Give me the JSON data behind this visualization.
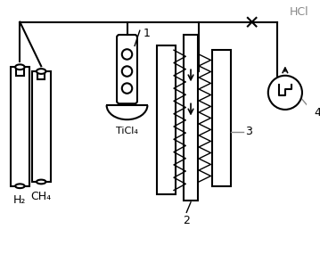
{
  "bg_color": "#ffffff",
  "line_color": "#000000",
  "gray_color": "#888888",
  "labels": {
    "H2": "H₂",
    "CH4": "CH₄",
    "TiCl4": "TiCl₄",
    "HCl": "HCl",
    "num1": "1",
    "num2": "2",
    "num3": "3",
    "num4": "4"
  },
  "figsize": [
    3.59,
    2.85
  ],
  "dpi": 100
}
